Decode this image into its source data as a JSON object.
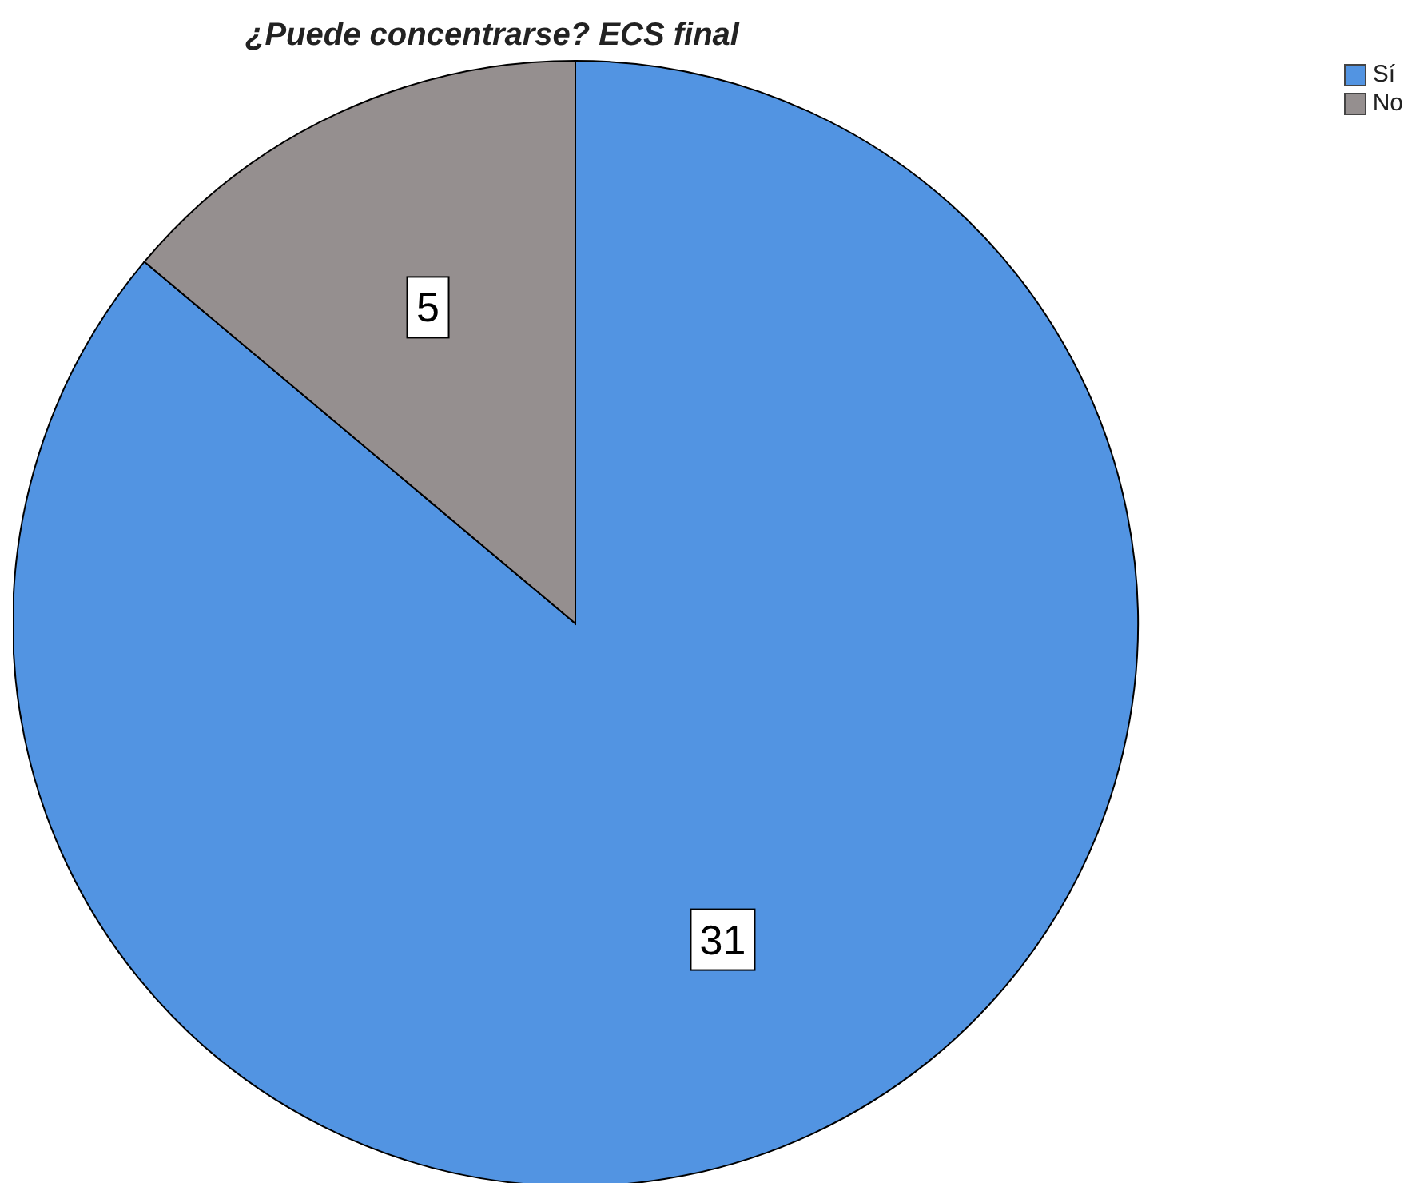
{
  "chart_data": {
    "type": "pie",
    "title": "¿Puede concentrarse? ECS final",
    "categories": [
      "Sí",
      "No"
    ],
    "values": [
      31,
      5
    ],
    "colors": [
      "#5294e2",
      "#958f8f"
    ],
    "data_labels": true,
    "legend": "top right"
  }
}
